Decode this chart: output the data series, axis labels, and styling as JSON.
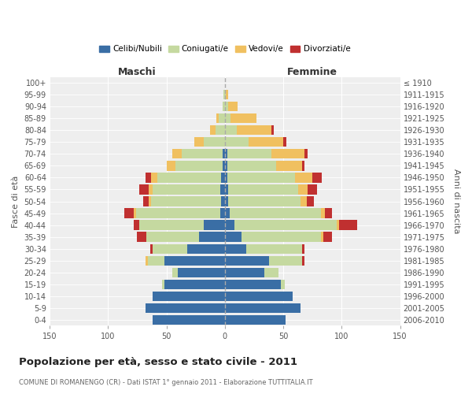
{
  "age_groups": [
    "0-4",
    "5-9",
    "10-14",
    "15-19",
    "20-24",
    "25-29",
    "30-34",
    "35-39",
    "40-44",
    "45-49",
    "50-54",
    "55-59",
    "60-64",
    "65-69",
    "70-74",
    "75-79",
    "80-84",
    "85-89",
    "90-94",
    "95-99",
    "100+"
  ],
  "birth_years": [
    "2006-2010",
    "2001-2005",
    "1996-2000",
    "1991-1995",
    "1986-1990",
    "1981-1985",
    "1976-1980",
    "1971-1975",
    "1966-1970",
    "1961-1965",
    "1956-1960",
    "1951-1955",
    "1946-1950",
    "1941-1945",
    "1936-1940",
    "1931-1935",
    "1926-1930",
    "1921-1925",
    "1916-1920",
    "1911-1915",
    "≤ 1910"
  ],
  "males": {
    "celibi": [
      62,
      68,
      62,
      52,
      40,
      52,
      32,
      22,
      18,
      4,
      3,
      4,
      3,
      2,
      2,
      0,
      0,
      0,
      0,
      0,
      0
    ],
    "coniugati": [
      0,
      0,
      0,
      2,
      5,
      14,
      30,
      45,
      55,
      72,
      60,
      58,
      55,
      40,
      35,
      18,
      8,
      5,
      2,
      1,
      0
    ],
    "vedovi": [
      0,
      0,
      0,
      0,
      0,
      2,
      0,
      0,
      0,
      2,
      2,
      3,
      5,
      8,
      8,
      8,
      5,
      2,
      0,
      0,
      0
    ],
    "divorziati": [
      0,
      0,
      0,
      0,
      0,
      0,
      2,
      8,
      5,
      8,
      5,
      8,
      5,
      0,
      0,
      0,
      0,
      0,
      0,
      0,
      0
    ]
  },
  "females": {
    "nubili": [
      52,
      65,
      58,
      48,
      34,
      38,
      18,
      14,
      8,
      4,
      3,
      3,
      2,
      2,
      2,
      0,
      0,
      0,
      0,
      0,
      0
    ],
    "coniugate": [
      0,
      0,
      0,
      3,
      12,
      28,
      48,
      68,
      88,
      78,
      62,
      60,
      58,
      42,
      38,
      20,
      10,
      5,
      3,
      1,
      0
    ],
    "vedove": [
      0,
      0,
      0,
      0,
      0,
      0,
      0,
      2,
      2,
      4,
      5,
      8,
      15,
      22,
      28,
      30,
      30,
      22,
      8,
      2,
      0
    ],
    "divorziate": [
      0,
      0,
      0,
      0,
      0,
      2,
      2,
      8,
      15,
      6,
      6,
      8,
      8,
      2,
      3,
      3,
      2,
      0,
      0,
      0,
      0
    ]
  },
  "colors": {
    "celibi": "#3a6ea5",
    "coniugati": "#c5d9a0",
    "vedovi": "#f0c060",
    "divorziati": "#c03030"
  },
  "title": "Popolazione per età, sesso e stato civile - 2011",
  "subtitle": "COMUNE DI ROMANENGO (CR) - Dati ISTAT 1° gennaio 2011 - Elaborazione TUTTITALIA.IT",
  "xlabel_left": "Maschi",
  "xlabel_right": "Femmine",
  "ylabel_left": "Fasce di età",
  "ylabel_right": "Anni di nascita",
  "xlim": 150,
  "legend_labels": [
    "Celibi/Nubili",
    "Coniugati/e",
    "Vedovi/e",
    "Divorziati/e"
  ],
  "background_color": "#ffffff",
  "plot_bg_color": "#eeeeee"
}
